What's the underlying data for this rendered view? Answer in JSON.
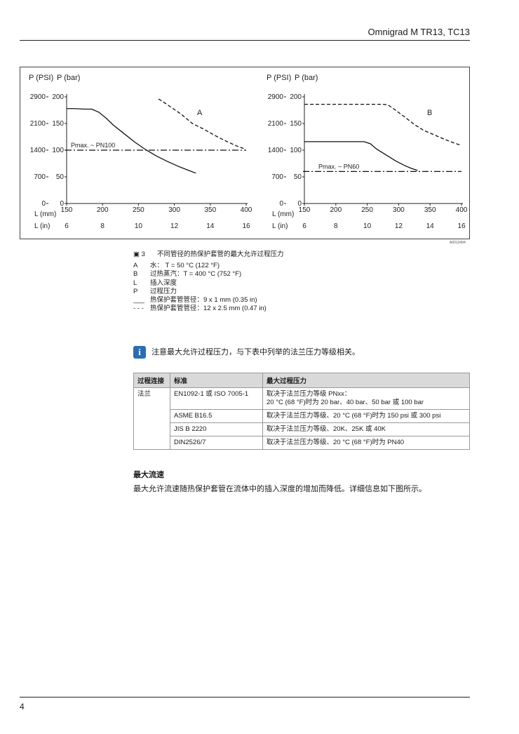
{
  "header": {
    "title": "Omnigrad M TR13, TC13"
  },
  "figure": {
    "id_code": "A0013494",
    "caption_number": "3",
    "caption_text": "不同管径的热保护套管的最大允许过程压力"
  },
  "chart_data": [
    {
      "type": "line",
      "label": "A",
      "y_label_psi": "P (PSI)",
      "y_label_bar": "P (bar)",
      "x_label_mm": "L (mm)",
      "x_label_in": "L (in)",
      "x_ticks_mm": [
        "150",
        "200",
        "250",
        "300",
        "350",
        "400"
      ],
      "x_ticks_in": [
        "6",
        "8",
        "10",
        "12",
        "14",
        "16"
      ],
      "y_ticks_bar": [
        "0",
        "50",
        "100",
        "150",
        "200"
      ],
      "y_ticks_psi": [
        "0",
        "700",
        "1400",
        "2100",
        "2900"
      ],
      "xlim": [
        150,
        400
      ],
      "ylim": [
        0,
        200
      ],
      "reference_label": "Pmax. ~ PN100",
      "reference_value": 100,
      "series": [
        {
          "style": "solid",
          "x": [
            150,
            160,
            175,
            185,
            195,
            205,
            215,
            230,
            245,
            260,
            275,
            290,
            305,
            320,
            330
          ],
          "y": [
            178,
            178,
            177,
            177,
            171,
            160,
            147,
            131,
            115,
            101,
            89,
            79,
            70,
            62,
            57
          ]
        },
        {
          "style": "dashed",
          "x": [
            278,
            285,
            295,
            310,
            325,
            340,
            360,
            375,
            390,
            397
          ],
          "y": [
            196,
            190,
            181,
            167,
            150,
            140,
            125,
            115,
            106,
            103
          ]
        }
      ]
    },
    {
      "type": "line",
      "label": "B",
      "y_label_psi": "P (PSI)",
      "y_label_bar": "P (bar)",
      "x_label_mm": "L (mm)",
      "x_label_in": "L (in)",
      "x_ticks_mm": [
        "150",
        "200",
        "250",
        "300",
        "350",
        "400"
      ],
      "x_ticks_in": [
        "6",
        "8",
        "10",
        "12",
        "14",
        "16"
      ],
      "y_ticks_bar": [
        "0",
        "50",
        "100",
        "150",
        "200"
      ],
      "y_ticks_psi": [
        "0",
        "700",
        "1400",
        "2100",
        "2900"
      ],
      "xlim": [
        150,
        400
      ],
      "ylim": [
        0,
        200
      ],
      "reference_label": "Pmax. ~ PN60",
      "reference_value": 60,
      "series": [
        {
          "style": "solid",
          "x": [
            150,
            175,
            200,
            225,
            245,
            255,
            265,
            280,
            295,
            310,
            320,
            330
          ],
          "y": [
            116,
            116,
            116,
            116,
            116,
            112,
            102,
            91,
            80,
            71,
            66,
            62
          ]
        },
        {
          "style": "dashed",
          "x": [
            150,
            200,
            250,
            275,
            283,
            295,
            310,
            325,
            340,
            360,
            380,
            397
          ],
          "y": [
            186,
            186,
            186,
            186,
            185,
            175,
            162,
            148,
            137,
            127,
            117,
            110
          ]
        }
      ]
    }
  ],
  "legend": [
    {
      "key": "A",
      "text": "水： T = 50 °C (122 °F)"
    },
    {
      "key": "B",
      "text": "过热蒸汽：T = 400 °C (752 °F)"
    },
    {
      "key": "L",
      "text": "插入深度"
    },
    {
      "key": "P",
      "text": "过程压力"
    },
    {
      "key": "___",
      "text": "热保护套管管径：9 x 1 mm (0.35 in)"
    },
    {
      "key": "- - -",
      "text": "热保护套管管径：12 x 2.5 mm (0.47 in)"
    }
  ],
  "note": {
    "text": "注意最大允许过程压力，与下表中列举的法兰压力等级相关。"
  },
  "table": {
    "headers": [
      "过程连接",
      "标准",
      "最大过程压力"
    ],
    "group_label": "法兰",
    "rows": [
      {
        "standard": "EN1092-1 或 ISO 7005-1",
        "pressure_line1": "取决于法兰压力等级 PNxx：",
        "pressure_line2": "20 °C (68 °F)时为 20 bar、40 bar、50 bar 或 100 bar"
      },
      {
        "standard": "ASME B16.5",
        "pressure_line1": "取决于法兰压力等级、20 °C (68 °F)时为 150 psi 或 300 psi",
        "pressure_line2": ""
      },
      {
        "standard": "JIS B 2220",
        "pressure_line1": "取决于法兰压力等级、20K、25K 或 40K",
        "pressure_line2": ""
      },
      {
        "standard": "DIN2526/7",
        "pressure_line1": "取决于法兰压力等级、20 °C (68 °F)时为 PN40",
        "pressure_line2": ""
      }
    ]
  },
  "section": {
    "title": "最大流速",
    "body": "最大允许流速随热保护套管在流体中的插入深度的增加而降低。详细信息如下图所示。"
  },
  "footer": {
    "page_number": "4"
  }
}
